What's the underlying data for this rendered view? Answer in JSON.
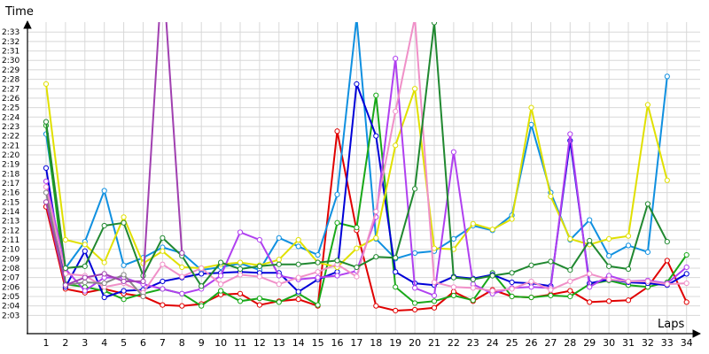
{
  "chart_data": {
    "type": "line",
    "title": "",
    "xlabel": "Laps",
    "ylabel": "Time",
    "x": [
      1,
      2,
      3,
      4,
      5,
      6,
      7,
      8,
      9,
      10,
      11,
      12,
      13,
      14,
      15,
      16,
      17,
      18,
      19,
      20,
      21,
      22,
      23,
      24,
      25,
      26,
      27,
      28,
      29,
      30,
      31,
      32,
      33,
      34
    ],
    "x_ticks": [
      "1",
      "2",
      "3",
      "4",
      "5",
      "6",
      "7",
      "8",
      "9",
      "10",
      "11",
      "12",
      "13",
      "14",
      "15",
      "16",
      "17",
      "18",
      "19",
      "20",
      "21",
      "22",
      "23",
      "24",
      "25",
      "26",
      "27",
      "28",
      "29",
      "30",
      "31",
      "32",
      "33",
      "34"
    ],
    "y_ticks": [
      "2:03",
      "2:04",
      "2:05",
      "2:06",
      "2:07",
      "2:08",
      "2:09",
      "2:10",
      "2:11",
      "2:12",
      "2:13",
      "2:14",
      "2:15",
      "2:16",
      "2:17",
      "2:18",
      "2:19",
      "2:20",
      "2:21",
      "2:22",
      "2:23",
      "2:24",
      "2:25",
      "2:26",
      "2:27",
      "2:28",
      "2:29",
      "2:30",
      "2:31",
      "2:32",
      "2:33"
    ],
    "y_unit": "seconds past 2:00",
    "ylim": [
      2,
      34.5
    ],
    "grid": true,
    "series": [
      {
        "color": "#e00000",
        "values": [
          14.5,
          5.8,
          5.4,
          5.8,
          5.3,
          5.0,
          4.1,
          4.0,
          4.2,
          5.2,
          5.3,
          4.1,
          4.5,
          4.7,
          4.0,
          22.5,
          12.0,
          4.0,
          3.5,
          3.6,
          3.8,
          5.5,
          4.5,
          5.7,
          5.0,
          4.9,
          5.2,
          5.6,
          4.4,
          4.5,
          4.6,
          6.0,
          8.8,
          4.4
        ]
      },
      {
        "color": "#1090e0",
        "values": [
          22.2,
          8.0,
          10.8,
          16.2,
          8.3,
          9.1,
          10.2,
          9.6,
          7.8,
          8.1,
          8.5,
          7.8,
          11.2,
          10.3,
          9.4,
          15.8,
          34.5,
          11.1,
          9.0,
          9.6,
          9.8,
          11.1,
          12.5,
          12.0,
          13.6,
          23.2,
          16.0,
          11.0,
          13.1,
          9.3,
          10.4,
          9.7,
          28.3,
          null
        ]
      },
      {
        "color": "#18a818",
        "values": [
          23.1,
          6.3,
          6.0,
          5.6,
          4.7,
          5.3,
          5.8,
          5.3,
          4.0,
          5.6,
          4.5,
          4.8,
          4.4,
          5.3,
          4.1,
          12.8,
          12.3,
          26.3,
          6.0,
          4.3,
          4.5,
          5.1,
          4.6,
          7.5,
          5.0,
          4.9,
          5.1,
          5.0,
          6.3,
          6.7,
          6.2,
          6.0,
          6.5,
          9.4
        ]
      },
      {
        "color": "#0000d8",
        "values": [
          18.6,
          6.0,
          9.8,
          4.9,
          5.6,
          5.7,
          6.6,
          7.0,
          7.4,
          7.5,
          7.6,
          7.5,
          7.5,
          5.5,
          6.8,
          7.6,
          27.5,
          22.0,
          7.6,
          6.4,
          6.2,
          7.1,
          6.9,
          7.3,
          6.5,
          6.4,
          6.1,
          21.5,
          6.4,
          6.8,
          6.5,
          6.4,
          6.2,
          7.4
        ]
      },
      {
        "color": "#e0e000",
        "values": [
          27.5,
          11.0,
          10.5,
          8.6,
          13.4,
          8.5,
          9.8,
          8.1,
          8.0,
          8.4,
          8.6,
          8.3,
          8.9,
          11.0,
          8.6,
          8.1,
          10.1,
          11.2,
          21.0,
          27.0,
          10.1,
          10.0,
          12.7,
          12.1,
          13.2,
          25.0,
          15.6,
          11.1,
          10.5,
          11.1,
          11.4,
          25.3,
          17.3,
          null
        ]
      },
      {
        "color": "#b040f0",
        "values": [
          17.2,
          7.9,
          5.6,
          7.0,
          7.0,
          6.3,
          5.8,
          5.3,
          5.8,
          7.2,
          11.8,
          11.0,
          7.2,
          6.8,
          7.0,
          7.2,
          7.7,
          13.4,
          30.2,
          5.9,
          5.1,
          20.3,
          6.3,
          5.3,
          5.9,
          6.0,
          5.9,
          22.2,
          6.0,
          7.2,
          6.6,
          6.7,
          6.4,
          8.1
        ]
      },
      {
        "color": "#f090c8",
        "values": [
          16.6,
          7.4,
          7.2,
          6.0,
          6.4,
          5.4,
          8.4,
          7.1,
          8.0,
          6.3,
          7.3,
          7.1,
          6.3,
          7.0,
          7.6,
          8.4,
          7.1,
          14.0,
          24.6,
          34.5,
          6.5,
          6.0,
          5.9,
          5.6,
          5.8,
          6.6,
          5.7,
          6.6,
          7.4,
          6.8,
          6.6,
          6.6,
          6.3,
          6.4
        ]
      },
      {
        "color": "#208830",
        "values": [
          23.5,
          8.0,
          8.2,
          12.5,
          12.8,
          7.2,
          11.2,
          9.3,
          6.1,
          8.6,
          7.9,
          8.2,
          8.4,
          8.4,
          8.6,
          8.8,
          8.1,
          9.2,
          9.1,
          16.4,
          34.0,
          7.0,
          6.8,
          7.2,
          7.5,
          8.3,
          8.7,
          7.8,
          10.9,
          8.2,
          7.9,
          14.8,
          10.8,
          null
        ]
      },
      {
        "color": "#888888",
        "values": [
          16.0,
          6.2,
          6.5,
          6.4,
          7.3,
          5.0,
          null,
          null,
          null,
          null,
          null,
          null,
          null,
          null,
          null,
          null,
          null,
          null,
          null,
          null,
          null,
          null,
          null,
          null,
          null,
          null,
          null,
          null,
          null,
          null,
          null,
          null,
          null,
          null
        ]
      },
      {
        "color": "#a040b0",
        "values": [
          15.0,
          6.2,
          7.0,
          7.4,
          6.6,
          6.6,
          40.0,
          9.6,
          null,
          null,
          null,
          null,
          null,
          null,
          null,
          null,
          null,
          null,
          null,
          null,
          null,
          null,
          null,
          null,
          null,
          null,
          null,
          null,
          null,
          null,
          null,
          null,
          null,
          null
        ]
      }
    ]
  }
}
